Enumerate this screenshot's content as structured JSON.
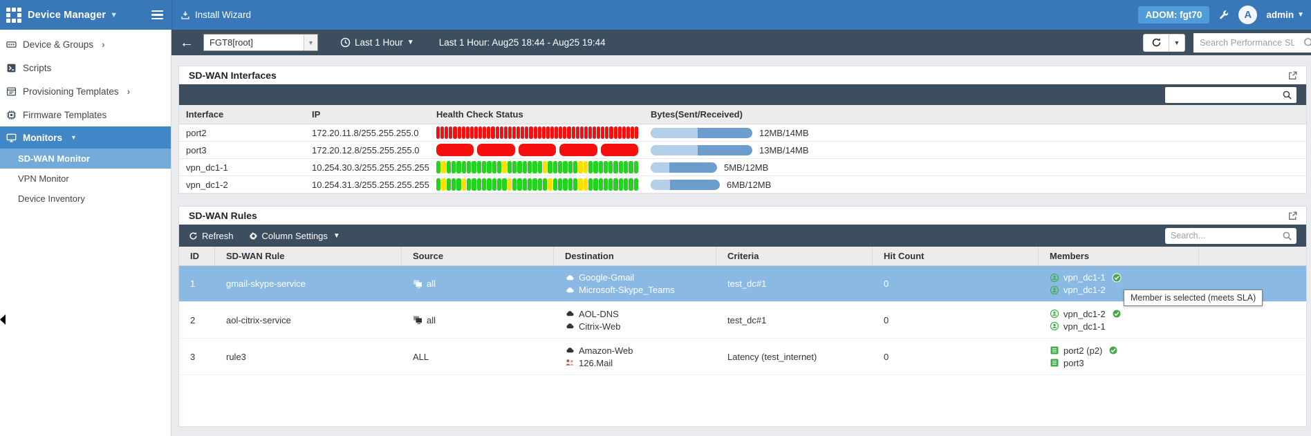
{
  "colors": {
    "accent_blue": "#3878b8",
    "badge_blue": "#4f9cd9",
    "dark_bar": "#3d4e5e",
    "page_bg": "#e9ebee",
    "selected_row": "#8abae4",
    "sidebar_active": "#4187c7",
    "sidebar_subactive": "#74aad9",
    "health_red": "#f50f0f",
    "health_green": "#23d41e",
    "health_yellow": "#ffdf00",
    "bytes_light": "#b3cfe9",
    "bytes_dark": "#6d9dcd",
    "member_green": "#3fae49",
    "check_green": "#49a84d",
    "mail_red": "#c0504d"
  },
  "header": {
    "app_title": "Device Manager",
    "install_wizard_label": "Install Wizard",
    "adom_badge": "ADOM: fgt70",
    "username": "admin",
    "avatar_letter": "A"
  },
  "toolbar": {
    "device_selector": "FGT8[root]",
    "time_range_label": "Last 1 Hour",
    "time_range_text": "Last 1 Hour: Aug25 18:44 - Aug25 19:44",
    "sla_search_placeholder": "Search Performance SLA"
  },
  "sidebar": {
    "items": [
      {
        "id": "device-groups",
        "label": "Device & Groups",
        "icon": "device-groups-icon",
        "chevron": "right"
      },
      {
        "id": "scripts",
        "label": "Scripts",
        "icon": "scripts-icon"
      },
      {
        "id": "provisioning-templates",
        "label": "Provisioning Templates",
        "icon": "provisioning-icon",
        "chevron": "right"
      },
      {
        "id": "firmware-templates",
        "label": "Firmware Templates",
        "icon": "firmware-icon"
      },
      {
        "id": "monitors",
        "label": "Monitors",
        "icon": "monitors-icon",
        "chevron": "down",
        "state": "parent-active"
      },
      {
        "id": "sdwan-monitor",
        "label": "SD-WAN Monitor",
        "indent": true,
        "state": "active"
      },
      {
        "id": "vpn-monitor",
        "label": "VPN Monitor",
        "indent": true
      },
      {
        "id": "device-inventory",
        "label": "Device Inventory",
        "indent": true
      }
    ]
  },
  "interfaces_panel": {
    "title": "SD-WAN Interfaces",
    "columns": [
      "Interface",
      "IP",
      "Health Check Status",
      "Bytes(Sent/Received)"
    ],
    "rows": [
      {
        "interface": "port2",
        "ip": "172.20.11.8/255.255.255.0",
        "health": {
          "wide": false,
          "pattern": "rrrrrrrrrrrrrrrrrrrrrrrrrrrrrrrrrrrrrrrrrrrrrrrr"
        },
        "bytes": {
          "pill_pct": 100,
          "sent_pct": 46,
          "label": "12MB/14MB"
        }
      },
      {
        "interface": "port3",
        "ip": "172.20.12.8/255.255.255.0",
        "health": {
          "wide": true,
          "pattern": "rrrrr"
        },
        "bytes": {
          "pill_pct": 100,
          "sent_pct": 46,
          "label": "13MB/14MB"
        }
      },
      {
        "interface": "vpn_dc1-1",
        "ip": "10.254.30.3/255.255.255.255",
        "health": {
          "wide": false,
          "pattern": "gygggggggggggygggggggyggggggyygggggggggg"
        },
        "bytes": {
          "pill_pct": 65,
          "sent_pct": 28,
          "label": "5MB/12MB"
        }
      },
      {
        "interface": "vpn_dc1-2",
        "ip": "10.254.31.3/255.255.255.255",
        "health": {
          "wide": false,
          "pattern": "gygggyggggggggygggggggygggggyygggggggggg"
        },
        "bytes": {
          "pill_pct": 68,
          "sent_pct": 28,
          "label": "6MB/12MB"
        }
      }
    ]
  },
  "rules_panel": {
    "title": "SD-WAN Rules",
    "toolbar": {
      "refresh_label": "Refresh",
      "column_settings_label": "Column Settings"
    },
    "search_placeholder": "Search...",
    "columns": [
      "ID",
      "SD-WAN Rule",
      "Source",
      "Destination",
      "Criteria",
      "Hit Count",
      "Members",
      ""
    ],
    "rows": [
      {
        "id": "1",
        "rule": "gmail-skype-service",
        "selected": true,
        "source": {
          "icon": "screens-icon",
          "label": "all"
        },
        "destinations": [
          {
            "icon": "cloud-icon",
            "label": "Google-Gmail"
          },
          {
            "icon": "cloud-icon",
            "label": "Microsoft-Skype_Teams"
          }
        ],
        "criteria": "test_dc#1",
        "hit_count": "0",
        "members": [
          {
            "icon": "member-icon",
            "label": "vpn_dc1-1",
            "check": true
          },
          {
            "icon": "member-icon",
            "label": "vpn_dc1-2",
            "check": false
          }
        ]
      },
      {
        "id": "2",
        "rule": "aol-citrix-service",
        "selected": false,
        "source": {
          "icon": "screens-icon",
          "label": "all"
        },
        "destinations": [
          {
            "icon": "cloud-icon",
            "label": "AOL-DNS"
          },
          {
            "icon": "cloud-icon",
            "label": "Citrix-Web"
          }
        ],
        "criteria": "test_dc#1",
        "hit_count": "0",
        "members": [
          {
            "icon": "member-icon",
            "label": "vpn_dc1-2",
            "check": true
          },
          {
            "icon": "member-icon",
            "label": "vpn_dc1-1",
            "check": false
          }
        ]
      },
      {
        "id": "3",
        "rule": "rule3",
        "selected": false,
        "source": {
          "icon": null,
          "label": "ALL"
        },
        "destinations": [
          {
            "icon": "cloud-icon",
            "label": "Amazon-Web"
          },
          {
            "icon": "mail-service-icon",
            "label": "126.Mail"
          }
        ],
        "criteria": "Latency (test_internet)",
        "hit_count": "0",
        "members": [
          {
            "icon": "port-icon",
            "label": "port2 (p2)",
            "check": true
          },
          {
            "icon": "port-icon",
            "label": "port3",
            "check": false
          }
        ]
      }
    ]
  },
  "tooltip": {
    "text": "Member is selected (meets SLA)"
  }
}
